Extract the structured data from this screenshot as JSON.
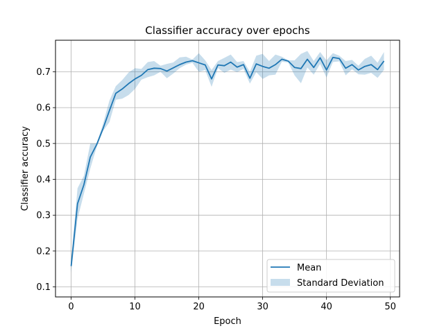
{
  "chart_data": {
    "type": "line",
    "title": "Classifier accuracy over epochs",
    "xlabel": "Epoch",
    "ylabel": "Classifier accuracy",
    "xlim": [
      -2.45,
      51.45
    ],
    "ylim": [
      0.072,
      0.788
    ],
    "xticks": [
      0,
      10,
      20,
      30,
      40,
      50
    ],
    "yticks": [
      0.1,
      0.2,
      0.3,
      0.4,
      0.5,
      0.6,
      0.7
    ],
    "grid": true,
    "legend_position": "lower-right",
    "colors": {
      "line": "#1f77b4",
      "band": "#1f77b4"
    },
    "series": [
      {
        "name": "Mean",
        "x": [
          0,
          1,
          2,
          3,
          4,
          5,
          6,
          7,
          8,
          9,
          10,
          11,
          12,
          13,
          14,
          15,
          16,
          17,
          18,
          19,
          20,
          21,
          22,
          23,
          24,
          25,
          26,
          27,
          28,
          29,
          30,
          31,
          32,
          33,
          34,
          35,
          36,
          37,
          38,
          39,
          40,
          41,
          42,
          43,
          44,
          45,
          46,
          47,
          48,
          49
        ],
        "values": [
          0.158,
          0.332,
          0.385,
          0.462,
          0.497,
          0.542,
          0.592,
          0.64,
          0.652,
          0.667,
          0.68,
          0.69,
          0.706,
          0.71,
          0.709,
          0.702,
          0.711,
          0.72,
          0.727,
          0.731,
          0.725,
          0.719,
          0.68,
          0.719,
          0.717,
          0.727,
          0.713,
          0.72,
          0.682,
          0.722,
          0.715,
          0.71,
          0.72,
          0.735,
          0.73,
          0.712,
          0.709,
          0.735,
          0.712,
          0.739,
          0.705,
          0.74,
          0.737,
          0.71,
          0.72,
          0.705,
          0.715,
          0.72,
          0.706,
          0.73
        ]
      },
      {
        "name": "Standard Deviation",
        "upper": [
          0.175,
          0.375,
          0.41,
          0.5,
          0.5,
          0.555,
          0.62,
          0.66,
          0.677,
          0.698,
          0.71,
          0.708,
          0.727,
          0.73,
          0.717,
          0.722,
          0.726,
          0.74,
          0.742,
          0.734,
          0.752,
          0.732,
          0.705,
          0.73,
          0.739,
          0.748,
          0.727,
          0.73,
          0.7,
          0.745,
          0.75,
          0.73,
          0.748,
          0.742,
          0.732,
          0.732,
          0.75,
          0.758,
          0.73,
          0.755,
          0.732,
          0.752,
          0.745,
          0.73,
          0.733,
          0.717,
          0.736,
          0.745,
          0.725,
          0.755
        ],
        "lower": [
          0.14,
          0.29,
          0.36,
          0.43,
          0.49,
          0.535,
          0.56,
          0.622,
          0.625,
          0.635,
          0.652,
          0.678,
          0.685,
          0.69,
          0.7,
          0.682,
          0.695,
          0.71,
          0.72,
          0.725,
          0.7,
          0.705,
          0.658,
          0.71,
          0.697,
          0.706,
          0.699,
          0.708,
          0.667,
          0.699,
          0.68,
          0.69,
          0.692,
          0.728,
          0.726,
          0.69,
          0.668,
          0.712,
          0.692,
          0.722,
          0.684,
          0.727,
          0.729,
          0.69,
          0.707,
          0.693,
          0.692,
          0.697,
          0.683,
          0.705
        ]
      }
    ]
  }
}
